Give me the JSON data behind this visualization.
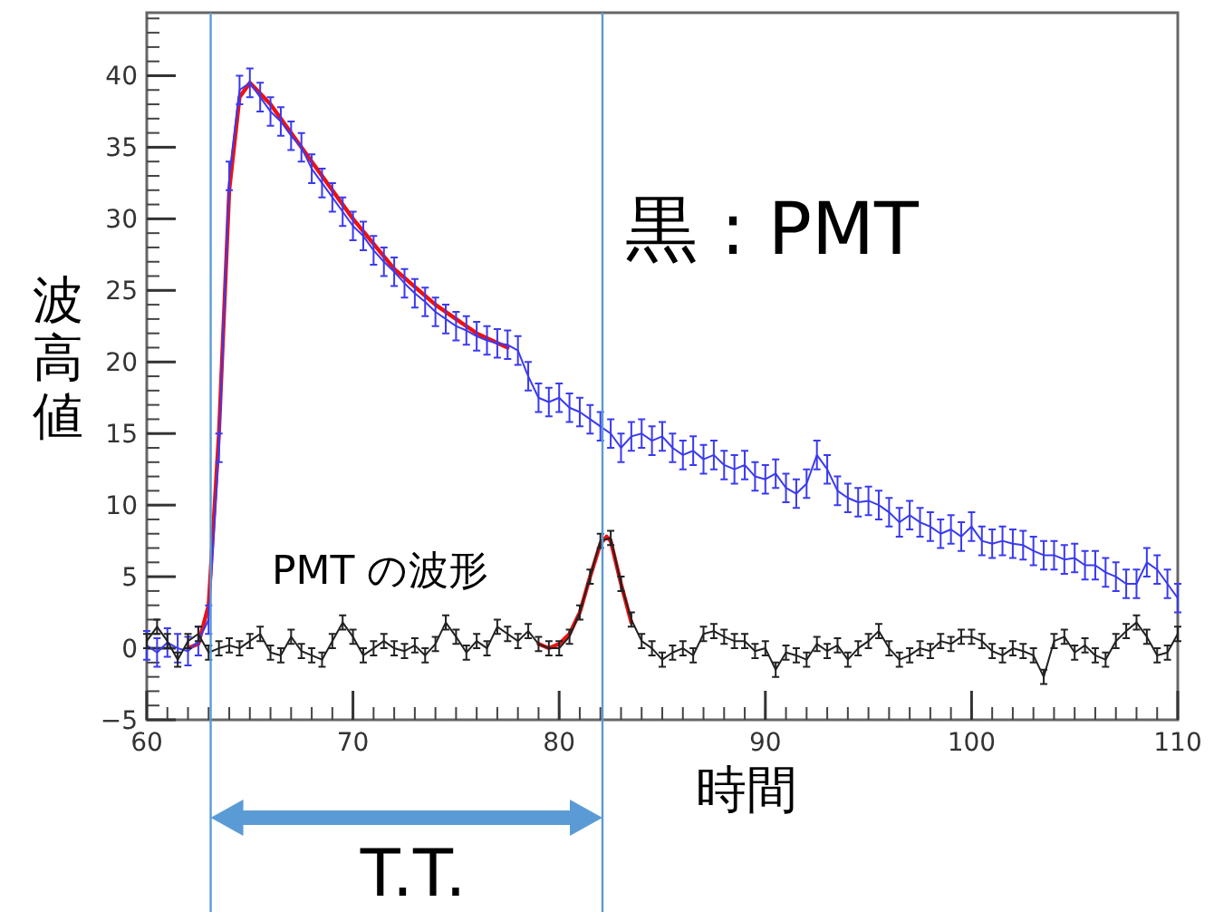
{
  "chart_data": {
    "type": "line",
    "xlabel": "時間",
    "ylabel": "波高値",
    "xlim": [
      60,
      110
    ],
    "ylim": [
      -5,
      44.4
    ],
    "xticks": [
      60,
      70,
      80,
      90,
      100,
      110
    ],
    "yticks": [
      -5,
      0,
      5,
      10,
      15,
      20,
      25,
      30,
      35,
      40
    ],
    "series": [
      {
        "color": "#3a3af0",
        "x": [
          60,
          60.5,
          61,
          61.5,
          62,
          62.5,
          63,
          63.5,
          64,
          64.5,
          65,
          65.5,
          66,
          66.5,
          67,
          67.5,
          68,
          68.5,
          69,
          69.5,
          70,
          70.5,
          71,
          71.5,
          72,
          72.5,
          73,
          73.5,
          74,
          74.5,
          75,
          75.5,
          76,
          76.5,
          77,
          77.5,
          78,
          78.5,
          79,
          79.5,
          80,
          80.5,
          81,
          81.5,
          82,
          82.5,
          83,
          83.5,
          84,
          84.5,
          85,
          85.5,
          86,
          86.5,
          87,
          87.5,
          88,
          88.5,
          89,
          89.5,
          90,
          90.5,
          91,
          91.5,
          92,
          92.5,
          93,
          93.5,
          94,
          94.5,
          95,
          95.5,
          96,
          96.5,
          97,
          97.5,
          98,
          98.5,
          99,
          99.5,
          100,
          100.5,
          101,
          101.5,
          102,
          102.5,
          103,
          103.5,
          104,
          104.5,
          105,
          105.5,
          106,
          106.5,
          107,
          107.5,
          108,
          108.5,
          109,
          109.5,
          110
        ],
        "values": [
          0.2,
          -0.3,
          0.4,
          0,
          -0.2,
          0.5,
          2,
          14,
          33,
          39,
          39.5,
          38.5,
          37.5,
          36.8,
          35.8,
          35,
          33.5,
          32.5,
          31.5,
          30.5,
          29.5,
          28.8,
          27.8,
          27,
          26.3,
          25.5,
          24.8,
          24.2,
          23.5,
          23,
          22.5,
          22.2,
          21.8,
          21.5,
          21.3,
          21.2,
          20.8,
          19,
          17.5,
          17.2,
          17.5,
          16.8,
          16.5,
          16,
          15.5,
          15,
          14,
          14.8,
          15,
          14.5,
          14.8,
          14,
          13.5,
          13.8,
          13.2,
          13.5,
          12.8,
          12.5,
          12.8,
          12,
          11.8,
          12.2,
          11.2,
          10.8,
          11.5,
          13.5,
          12.5,
          11,
          10.5,
          10.2,
          10.3,
          10,
          9.5,
          8.8,
          9.3,
          8.8,
          8.5,
          8,
          8.3,
          7.8,
          8.5,
          7.5,
          7.3,
          7.5,
          7.3,
          7.2,
          6.8,
          6.5,
          6.5,
          6.2,
          6.3,
          5.8,
          5.8,
          5.3,
          5,
          4.5,
          4.5,
          6,
          5.5,
          4.5,
          3.5
        ],
        "errors": [
          1,
          1,
          1,
          1,
          1,
          1,
          1,
          1,
          1,
          1,
          1,
          1,
          1,
          1,
          1,
          1,
          1,
          1,
          1,
          1,
          1,
          1,
          1,
          1,
          1,
          1,
          1,
          1,
          1,
          1,
          1,
          1,
          1,
          1,
          1,
          1,
          1,
          1,
          1,
          1,
          1,
          1,
          1,
          1,
          1,
          1,
          1,
          1,
          1,
          1,
          1,
          1,
          1,
          1,
          1,
          1,
          1,
          1,
          1,
          1,
          1,
          1,
          1,
          1,
          1,
          1,
          1,
          1,
          1,
          1,
          1,
          1,
          1,
          1,
          1,
          1,
          1,
          1,
          1,
          1,
          1,
          1,
          1,
          1,
          1,
          1,
          1,
          1,
          1,
          1,
          1,
          1,
          1,
          1,
          1,
          1,
          1,
          1,
          1,
          1,
          1
        ]
      },
      {
        "color": "#222222",
        "x": [
          60,
          60.5,
          61,
          61.5,
          62,
          62.5,
          63,
          63.5,
          64,
          64.5,
          65,
          65.5,
          66,
          66.5,
          67,
          67.5,
          68,
          68.5,
          69,
          69.5,
          70,
          70.5,
          71,
          71.5,
          72,
          72.5,
          73,
          73.5,
          74,
          74.5,
          75,
          75.5,
          76,
          76.5,
          77,
          77.5,
          78,
          78.5,
          79,
          79.5,
          80,
          80.5,
          81,
          81.5,
          82,
          82.5,
          83,
          83.5,
          84,
          84.5,
          85,
          85.5,
          86,
          86.5,
          87,
          87.5,
          88,
          88.5,
          89,
          89.5,
          90,
          90.5,
          91,
          91.5,
          92,
          92.5,
          93,
          93.5,
          94,
          94.5,
          95,
          95.5,
          96,
          96.5,
          97,
          97.5,
          98,
          98.5,
          99,
          99.5,
          100,
          100.5,
          101,
          101.5,
          102,
          102.5,
          103,
          103.5,
          104,
          104.5,
          105,
          105.5,
          106,
          106.5,
          107,
          107.5,
          108,
          108.5,
          109,
          109.5,
          110
        ],
        "values": [
          0.5,
          1.5,
          0.5,
          -0.8,
          0.5,
          1,
          -0.3,
          0,
          0.2,
          0,
          0.5,
          1,
          -0.3,
          -0.5,
          0.8,
          -0.2,
          -0.5,
          -0.8,
          0.5,
          1.8,
          0.8,
          -0.5,
          0,
          0.5,
          0,
          -0.2,
          0.2,
          -0.5,
          0.3,
          1.8,
          0.8,
          -0.3,
          0.5,
          0,
          1.5,
          1,
          0.5,
          1.2,
          0.3,
          0,
          0,
          0.8,
          2.5,
          5,
          7.5,
          7.7,
          4.5,
          2,
          0.5,
          0,
          -0.8,
          -0.3,
          0,
          -0.5,
          1,
          1.2,
          0.8,
          0.5,
          0.5,
          -0.2,
          0,
          -1.5,
          -0.3,
          -0.5,
          -0.8,
          0.3,
          -0.2,
          0.2,
          -0.8,
          0,
          0.5,
          1.2,
          0,
          -0.8,
          -0.5,
          0,
          -0.2,
          0.5,
          0.3,
          0.8,
          0.8,
          0.5,
          -0.2,
          -0.5,
          0,
          -0.2,
          -0.5,
          -2,
          0.5,
          0.8,
          -0.3,
          0.2,
          -0.5,
          -0.8,
          0.5,
          1.2,
          1.8,
          0.8,
          -0.5,
          -0.3,
          1
        ],
        "errors": [
          0.5,
          0.5,
          0.5,
          0.5,
          0.5,
          0.5,
          0.5,
          0.5,
          0.5,
          0.5,
          0.5,
          0.5,
          0.5,
          0.5,
          0.5,
          0.5,
          0.5,
          0.5,
          0.5,
          0.5,
          0.5,
          0.5,
          0.5,
          0.5,
          0.5,
          0.5,
          0.5,
          0.5,
          0.5,
          0.5,
          0.5,
          0.5,
          0.5,
          0.5,
          0.5,
          0.5,
          0.5,
          0.5,
          0.5,
          0.5,
          0.5,
          0.5,
          0.5,
          0.5,
          0.5,
          0.5,
          0.5,
          0.5,
          0.5,
          0.5,
          0.5,
          0.5,
          0.5,
          0.5,
          0.5,
          0.5,
          0.5,
          0.5,
          0.5,
          0.5,
          0.5,
          0.5,
          0.5,
          0.5,
          0.5,
          0.5,
          0.5,
          0.5,
          0.5,
          0.5,
          0.5,
          0.5,
          0.5,
          0.5,
          0.5,
          0.5,
          0.5,
          0.5,
          0.5,
          0.5,
          0.5,
          0.5,
          0.5,
          0.5,
          0.5,
          0.5,
          0.5,
          0.5,
          0.5,
          0.5,
          0.5,
          0.5,
          0.5,
          0.5,
          0.5,
          0.5,
          0.5,
          0.5,
          0.5,
          0.5,
          0.5
        ]
      },
      {
        "type": "line",
        "color": "#ee1111",
        "x": [
          62,
          62.5,
          63,
          63.5,
          64,
          64.5,
          65,
          66,
          68,
          70,
          72,
          74,
          76,
          77.5
        ],
        "values": [
          0,
          0.3,
          3,
          15,
          32,
          38.5,
          39.5,
          38,
          34,
          30,
          26.5,
          24,
          22,
          21
        ]
      },
      {
        "type": "line",
        "color": "#ee1111",
        "x": [
          79,
          79.5,
          80,
          80.5,
          81,
          81.5,
          82,
          82.3,
          82.5,
          83,
          83.5
        ],
        "values": [
          0.3,
          0,
          0.3,
          1,
          2.5,
          5,
          7.3,
          7.8,
          7.5,
          4.5,
          1.8
        ]
      }
    ],
    "ref_lines": [
      {
        "axis": "x",
        "value": 63.1,
        "color": "#5b9bd5"
      },
      {
        "axis": "x",
        "value": 82.1,
        "color": "#5b9bd5"
      }
    ],
    "annotations": [
      "黒 : PMT",
      "PMT の波形",
      "T.T."
    ]
  }
}
